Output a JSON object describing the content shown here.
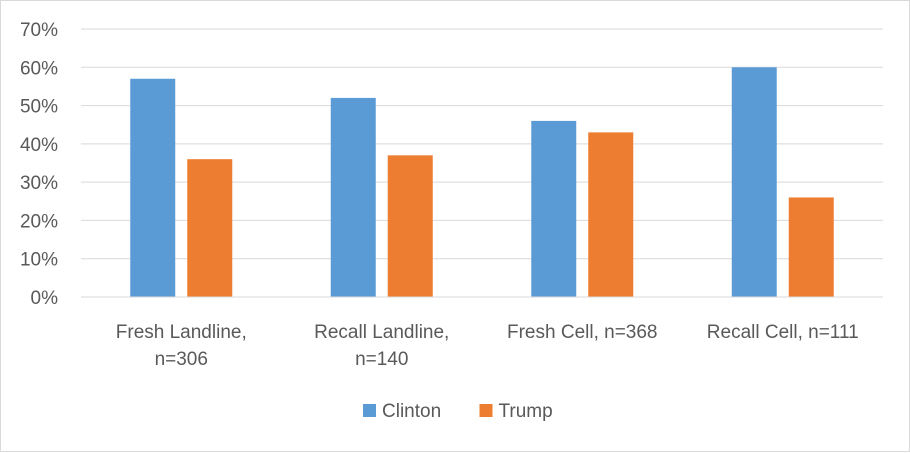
{
  "chart_data": {
    "type": "bar",
    "categories": [
      [
        "Fresh Landline,",
        "n=306"
      ],
      [
        "Recall Landline,",
        "n=140"
      ],
      [
        "Fresh Cell, n=368"
      ],
      [
        "Recall Cell, n=111"
      ]
    ],
    "series": [
      {
        "name": "Clinton",
        "color": "#5b9bd5",
        "values": [
          57,
          52,
          46,
          60
        ]
      },
      {
        "name": "Trump",
        "color": "#ed7d31",
        "values": [
          36,
          37,
          43,
          26
        ]
      }
    ],
    "y_ticks": [
      "0%",
      "10%",
      "20%",
      "30%",
      "40%",
      "50%",
      "60%",
      "70%"
    ],
    "ylim": [
      0,
      70
    ],
    "y_unit": "%",
    "grid": true,
    "legend_position": "bottom",
    "title": "",
    "xlabel": "",
    "ylabel": ""
  }
}
